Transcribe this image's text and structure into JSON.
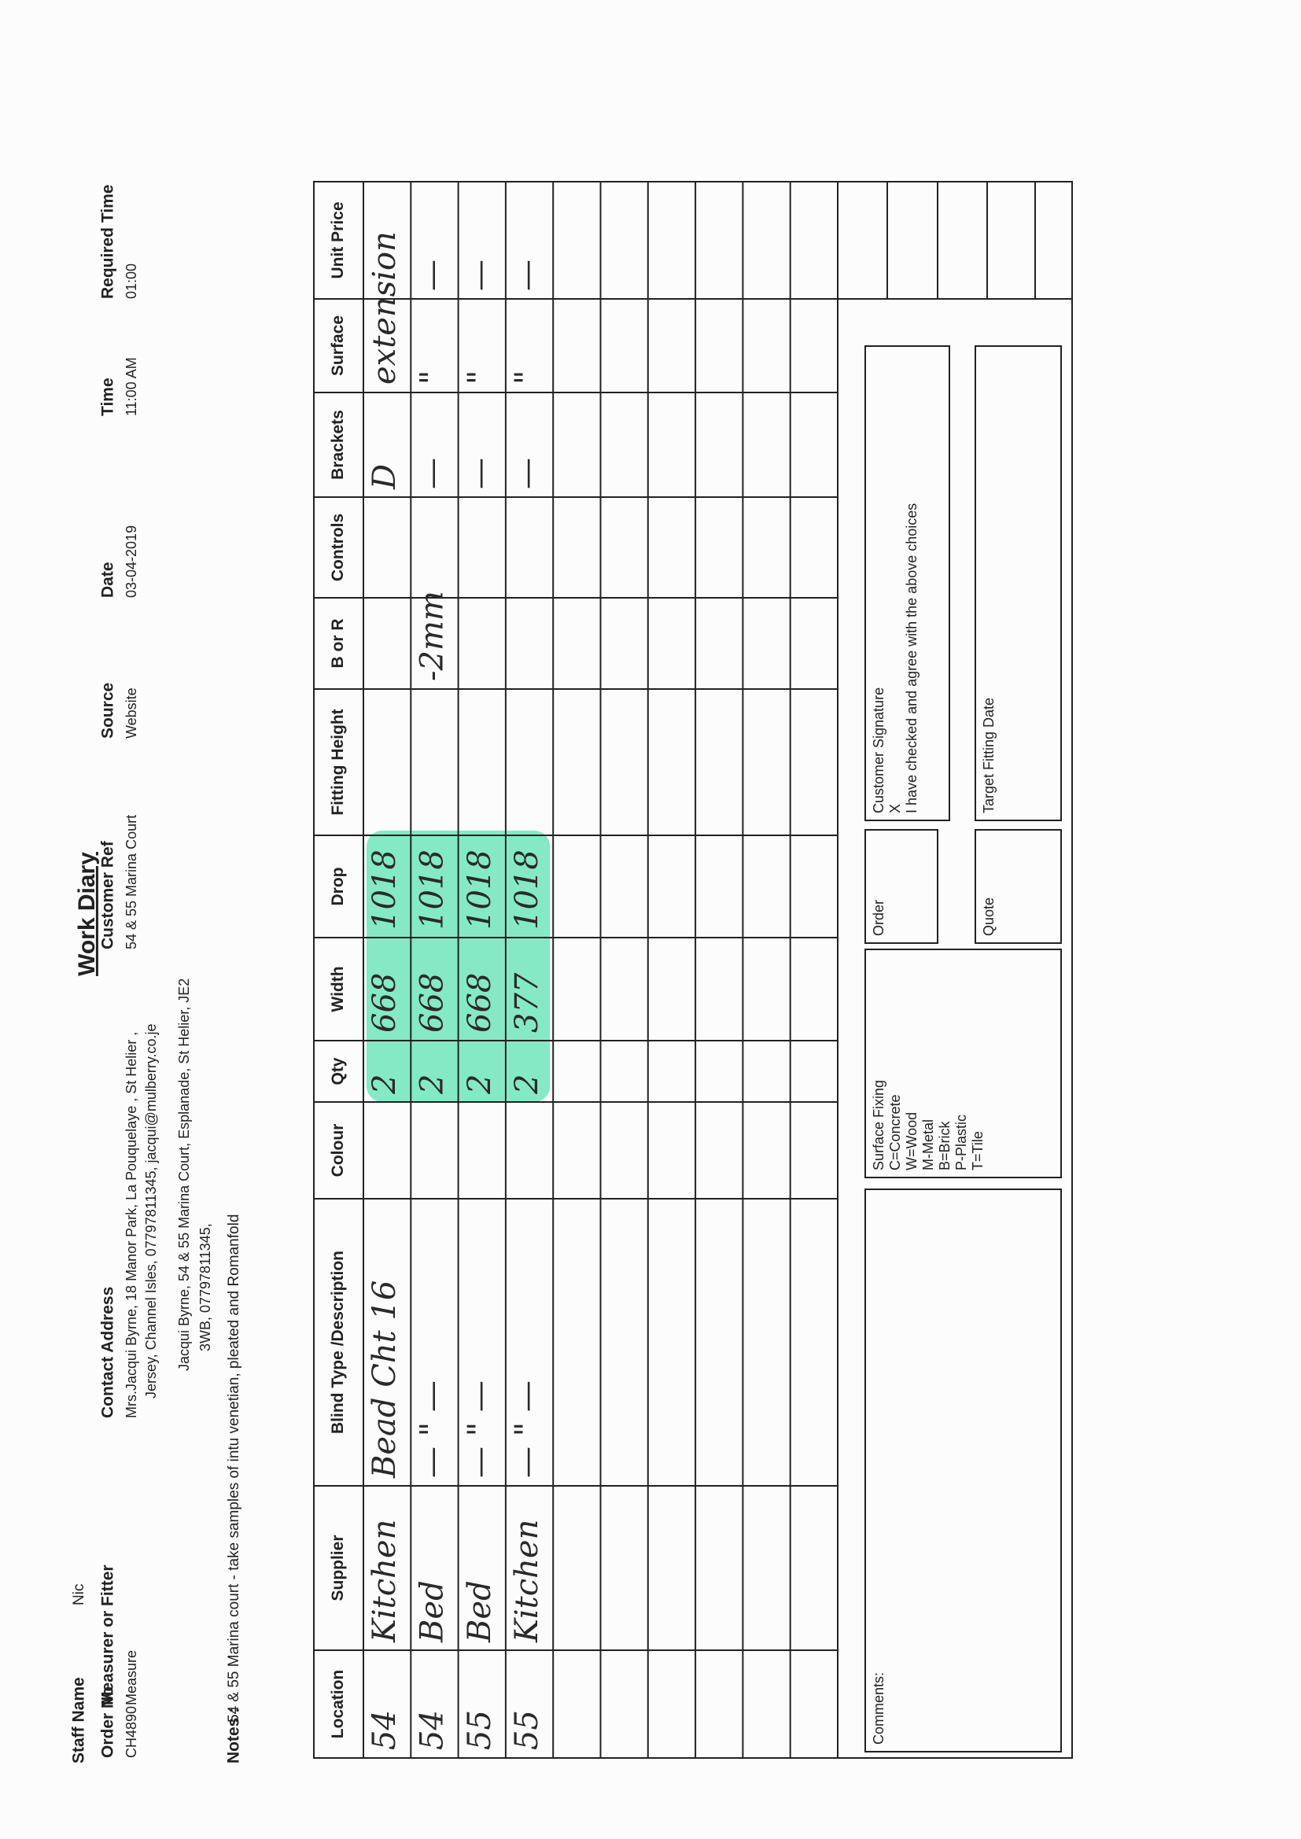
{
  "header": {
    "title": "Work Diary",
    "staff_name_label": "Staff Name",
    "staff_name": "Nic"
  },
  "fields": [
    {
      "label": "Order No",
      "lines": [
        "CH4890"
      ]
    },
    {
      "label": "Measurer or Fitter",
      "lines": [
        "Measure"
      ]
    },
    {
      "label": "Contact Address",
      "lines": [
        "Mrs.Jacqui Byrne, 18 Manor Park, La Pouquelaye , St Helier ,",
        "Jersey, Channel Isles, 07797811345, jacqui@mulberry.co.je",
        "Jacqui Byrne, 54 & 55 Marina Court, Esplanade, St Helier, JE2",
        "3WB, 07797811345,"
      ]
    },
    {
      "label": "Customer Ref",
      "lines": [
        "54 & 55 Marina Court"
      ]
    },
    {
      "label": "Source",
      "lines": [
        "Website"
      ]
    },
    {
      "label": "Date",
      "lines": [
        "03-04-2019"
      ]
    },
    {
      "label": "Time",
      "lines": [
        "11:00 AM"
      ]
    },
    {
      "label": "Required Time",
      "lines": [
        "01:00"
      ]
    }
  ],
  "notes": {
    "label": "Notes :",
    "text": "54 & 55 Marina court - take samples of intu venetian, pleated and Romanfold"
  },
  "table": {
    "columns": [
      "Location",
      "Supplier",
      "Blind Type /Description",
      "Colour",
      "Qty",
      "Width",
      "Drop",
      "Fitting Height",
      "B or R",
      "Controls",
      "Brackets",
      "Surface",
      "Unit Price"
    ],
    "rows": [
      {
        "Location": "54",
        "Supplier": "Kitchen",
        "Blind Type /Description": "Bead Cht 16",
        "Qty": "2",
        "Width": "668",
        "Drop": "1018",
        "Brackets": "D",
        "Surface": "extension"
      },
      {
        "Location": "54",
        "Supplier": "Bed",
        "Blind Type /Description": "— \" —",
        "Qty": "2",
        "Width": "668",
        "Drop": "1018",
        "B or R": "-2mm",
        "Brackets": "—",
        "Surface": "\"",
        "Unit Price": "—"
      },
      {
        "Location": "55",
        "Supplier": "Bed",
        "Blind Type /Description": "— \" —",
        "Qty": "2",
        "Width": "668",
        "Drop": "1018",
        "Brackets": "—",
        "Surface": "\"",
        "Unit Price": "—"
      },
      {
        "Location": "55",
        "Supplier": "Kitchen",
        "Blind Type /Description": "— \" —",
        "Qty": "2",
        "Width": "377",
        "Drop": "1018",
        "Brackets": "—",
        "Surface": "\"",
        "Unit Price": "—"
      }
    ]
  },
  "boxes": {
    "comments": "Comments:",
    "surface_fixing": [
      "Surface Fixing",
      "C=Concrete",
      "W=Wood",
      "M-Metal",
      "B=Brick",
      "P-Plastic",
      "T=Tile"
    ],
    "order": "Order",
    "quote": "Quote",
    "signature": [
      "Customer Signature",
      "X",
      "I have checked and agree with the above choices"
    ],
    "target": "Target Fitting Date"
  }
}
